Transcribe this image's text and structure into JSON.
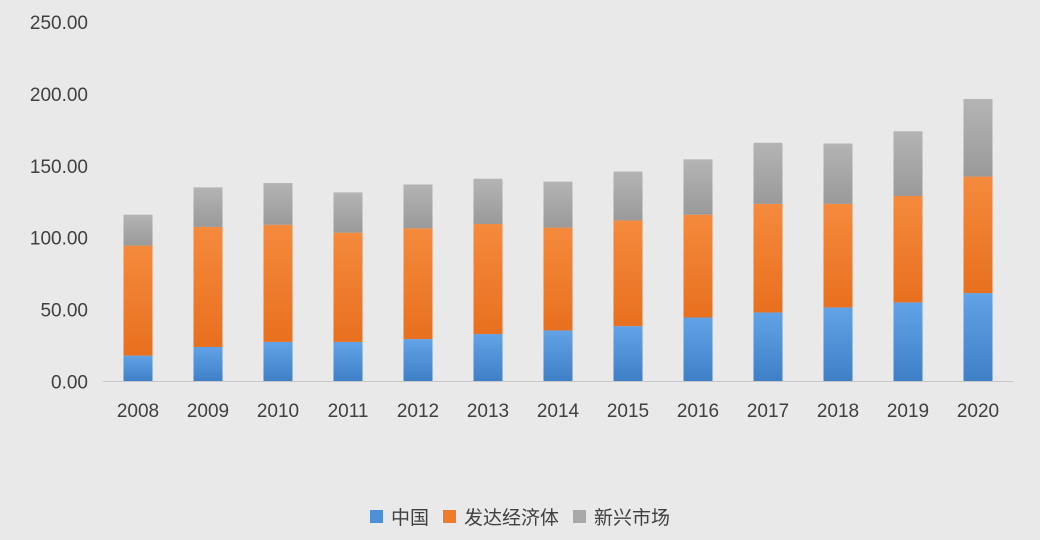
{
  "chart_data": {
    "type": "bar",
    "stacked": true,
    "categories": [
      "2008",
      "2009",
      "2010",
      "2011",
      "2012",
      "2013",
      "2014",
      "2015",
      "2016",
      "2017",
      "2018",
      "2019",
      "2020"
    ],
    "series": [
      {
        "name": "中国",
        "color": "#4e8fd6",
        "values": [
          18,
          24,
          27.5,
          27.5,
          29.5,
          33,
          35.5,
          38.5,
          44.5,
          48,
          51.5,
          55,
          61.5
        ]
      },
      {
        "name": "发达经济体",
        "color": "#f07c2a",
        "values": [
          76.5,
          83.5,
          81.5,
          76,
          77,
          76.5,
          71.5,
          73.5,
          71.5,
          75.5,
          72,
          74,
          81
        ]
      },
      {
        "name": "新兴市场",
        "color": "#a8a8a8",
        "values": [
          21.5,
          27.5,
          29,
          28,
          30.5,
          31.5,
          32,
          34,
          38.5,
          42.5,
          42,
          45,
          54
        ]
      }
    ],
    "y_tick_labels": [
      "0.00",
      "50.00",
      "100.00",
      "150.00",
      "200.00",
      "250.00"
    ],
    "ylim": [
      0,
      250
    ],
    "grid": false,
    "legend_position": "bottom"
  }
}
